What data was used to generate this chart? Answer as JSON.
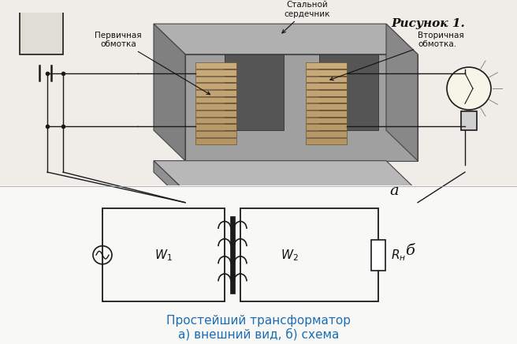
{
  "title": "Рисунок 1.",
  "label_a": "а",
  "label_b": "б",
  "caption_line1": "Простейший трансформатор",
  "caption_line2": "а) внешний вид, б) схема",
  "label_primary": "Первичная\nобмотка",
  "label_secondary": "Вторичная\nобмотка.",
  "label_core": "Стальной\nсердечник",
  "w1_label": "w₁",
  "w2_label": "w₂",
  "rh_label": "Rн",
  "bg_color": "#f0ede8",
  "line_color": "#1a1a1a",
  "text_color": "#111111",
  "caption_color": "#1a6eb5"
}
